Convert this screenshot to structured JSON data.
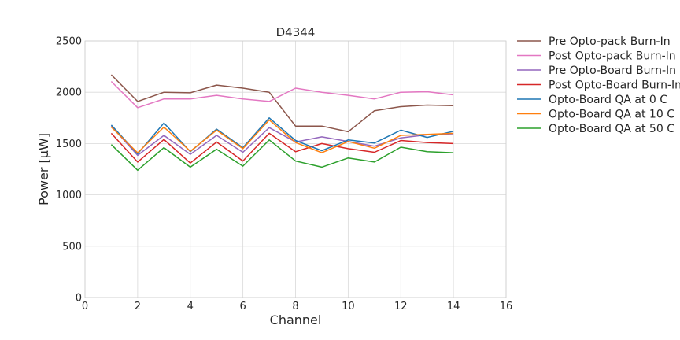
{
  "chart_data": {
    "type": "line",
    "title": "D4344",
    "xlabel": "Channel",
    "ylabel": "Power [μW]",
    "xlim": [
      0,
      16
    ],
    "ylim": [
      0,
      2500
    ],
    "xticks": [
      0,
      2,
      4,
      6,
      8,
      10,
      12,
      14,
      16
    ],
    "yticks": [
      0,
      500,
      1000,
      1500,
      2000,
      2500
    ],
    "grid": true,
    "legend": "outside-right-top",
    "x": [
      1,
      2,
      3,
      4,
      5,
      6,
      7,
      8,
      9,
      10,
      11,
      12,
      13,
      14
    ],
    "series": [
      {
        "name": "Pre Opto-pack Burn-In",
        "color": "#8c564b",
        "values": [
          2170,
          1910,
          2000,
          1995,
          2070,
          2040,
          2000,
          1670,
          1670,
          1615,
          1820,
          1860,
          1875,
          1870
        ]
      },
      {
        "name": "Post Opto-pack Burn-In",
        "color": "#e377c2",
        "values": [
          2105,
          1850,
          1935,
          1935,
          1970,
          1935,
          1910,
          2040,
          2000,
          1970,
          1935,
          2000,
          2005,
          1975
        ]
      },
      {
        "name": "Pre Opto-Board Burn-In",
        "color": "#9467bd",
        "values": [
          1670,
          1385,
          1580,
          1395,
          1580,
          1415,
          1655,
          1515,
          1565,
          1520,
          1475,
          1555,
          1585,
          1595
        ]
      },
      {
        "name": "Post Opto-Board Burn-In",
        "color": "#d62728",
        "values": [
          1600,
          1320,
          1540,
          1310,
          1515,
          1330,
          1600,
          1420,
          1500,
          1450,
          1415,
          1530,
          1510,
          1500
        ]
      },
      {
        "name": "Opto-Board QA at 0 C",
        "color": "#1f77b4",
        "values": [
          1680,
          1400,
          1700,
          1420,
          1640,
          1460,
          1750,
          1530,
          1430,
          1535,
          1505,
          1630,
          1560,
          1620
        ]
      },
      {
        "name": "Opto-Board QA at 10 C",
        "color": "#ff7f0e",
        "values": [
          1660,
          1410,
          1660,
          1425,
          1630,
          1450,
          1730,
          1510,
          1410,
          1520,
          1455,
          1580,
          1590,
          1600
        ]
      },
      {
        "name": "Opto-Board QA at 50 C",
        "color": "#2ca02c",
        "values": [
          1490,
          1240,
          1460,
          1270,
          1445,
          1280,
          1535,
          1330,
          1270,
          1360,
          1320,
          1465,
          1420,
          1410
        ]
      }
    ]
  }
}
